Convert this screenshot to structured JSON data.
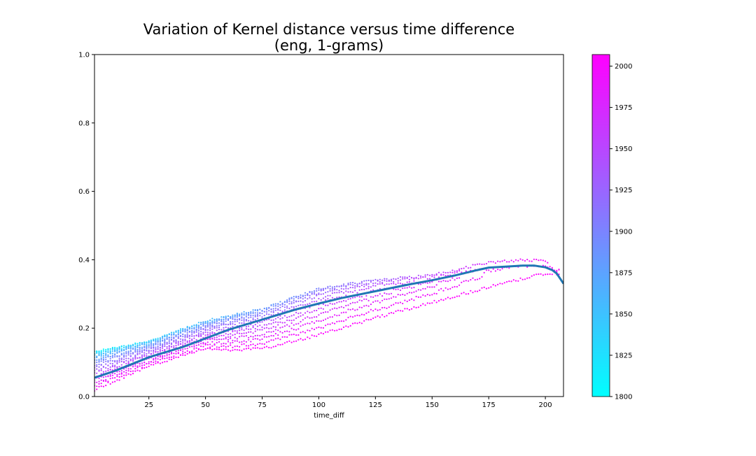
{
  "chart_data": {
    "type": "scatter",
    "title": "Variation of Kernel distance versus time difference",
    "subtitle": "(eng, 1-grams)",
    "xlabel": "time_diff",
    "ylabel": "",
    "xlim": [
      1,
      208
    ],
    "ylim": [
      0.0,
      1.0
    ],
    "xticks": [
      25,
      50,
      75,
      100,
      125,
      150,
      175,
      200
    ],
    "yticks": [
      0.0,
      0.2,
      0.4,
      0.6,
      0.8,
      1.0
    ],
    "grid": false,
    "colorbar": {
      "label": "",
      "range": [
        1800,
        2007
      ],
      "ticks": [
        1800,
        1825,
        1850,
        1875,
        1900,
        1925,
        1950,
        1975,
        2000
      ],
      "colormap": "cool",
      "color_low": "#00ffff",
      "color_high": "#ff00ff"
    },
    "trend_line": {
      "color": "#1f77b4",
      "points": [
        [
          1,
          0.055
        ],
        [
          10,
          0.075
        ],
        [
          25,
          0.115
        ],
        [
          40,
          0.145
        ],
        [
          50,
          0.17
        ],
        [
          60,
          0.195
        ],
        [
          75,
          0.225
        ],
        [
          90,
          0.255
        ],
        [
          100,
          0.272
        ],
        [
          110,
          0.288
        ],
        [
          125,
          0.308
        ],
        [
          140,
          0.328
        ],
        [
          150,
          0.34
        ],
        [
          160,
          0.354
        ],
        [
          170,
          0.37
        ],
        [
          175,
          0.377
        ],
        [
          185,
          0.381
        ],
        [
          190,
          0.383
        ],
        [
          195,
          0.383
        ],
        [
          200,
          0.378
        ],
        [
          203,
          0.37
        ],
        [
          205,
          0.36
        ],
        [
          207,
          0.34
        ],
        [
          208,
          0.33
        ]
      ]
    },
    "scatter_envelope": {
      "upper": [
        [
          1,
          0.13
        ],
        [
          25,
          0.16
        ],
        [
          50,
          0.22
        ],
        [
          75,
          0.255
        ],
        [
          100,
          0.315
        ],
        [
          125,
          0.34
        ],
        [
          150,
          0.355
        ],
        [
          175,
          0.392
        ],
        [
          190,
          0.4
        ],
        [
          200,
          0.395
        ],
        [
          204,
          0.37
        ]
      ],
      "lower_recent": [
        [
          1,
          0.02
        ],
        [
          25,
          0.09
        ],
        [
          50,
          0.14
        ],
        [
          60,
          0.135
        ],
        [
          75,
          0.14
        ],
        [
          100,
          0.18
        ],
        [
          125,
          0.23
        ],
        [
          150,
          0.275
        ],
        [
          175,
          0.32
        ],
        [
          200,
          0.36
        ]
      ]
    }
  }
}
